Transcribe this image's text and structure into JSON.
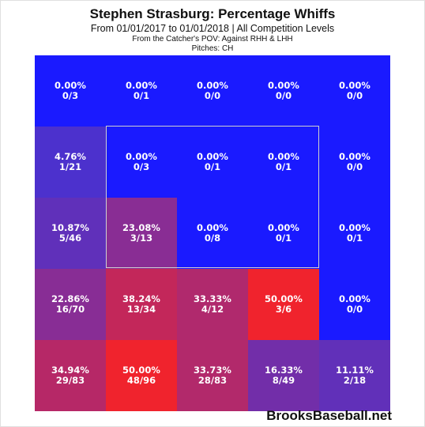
{
  "header": {
    "title": "Stephen Strasburg: Percentage Whiffs",
    "subtitle": "From 01/01/2017 to 01/01/2018 | All Competition Levels",
    "pov": "From the Catcher's POV:  Against RHH & LHH",
    "pitches": "Pitches:  CH"
  },
  "brand": "BrooksBaseball.net",
  "colors": {
    "low": "#1a1aff",
    "high": "#ff2020",
    "strike_zone_border": "#cfcfcf"
  },
  "chart_data": {
    "type": "heatmap",
    "title": "Stephen Strasburg: Percentage Whiffs",
    "rows": 5,
    "cols": 5,
    "cells": [
      [
        {
          "pct": "0.00%",
          "frac": "0/3",
          "value": 0.0
        },
        {
          "pct": "0.00%",
          "frac": "0/1",
          "value": 0.0
        },
        {
          "pct": "0.00%",
          "frac": "0/0",
          "value": 0.0
        },
        {
          "pct": "0.00%",
          "frac": "0/0",
          "value": 0.0
        },
        {
          "pct": "0.00%",
          "frac": "0/0",
          "value": 0.0
        }
      ],
      [
        {
          "pct": "4.76%",
          "frac": "1/21",
          "value": 4.76
        },
        {
          "pct": "0.00%",
          "frac": "0/3",
          "value": 0.0
        },
        {
          "pct": "0.00%",
          "frac": "0/1",
          "value": 0.0
        },
        {
          "pct": "0.00%",
          "frac": "0/1",
          "value": 0.0
        },
        {
          "pct": "0.00%",
          "frac": "0/0",
          "value": 0.0
        }
      ],
      [
        {
          "pct": "10.87%",
          "frac": "5/46",
          "value": 10.87
        },
        {
          "pct": "23.08%",
          "frac": "3/13",
          "value": 23.08
        },
        {
          "pct": "0.00%",
          "frac": "0/8",
          "value": 0.0
        },
        {
          "pct": "0.00%",
          "frac": "0/1",
          "value": 0.0
        },
        {
          "pct": "0.00%",
          "frac": "0/1",
          "value": 0.0
        }
      ],
      [
        {
          "pct": "22.86%",
          "frac": "16/70",
          "value": 22.86
        },
        {
          "pct": "38.24%",
          "frac": "13/34",
          "value": 38.24
        },
        {
          "pct": "33.33%",
          "frac": "4/12",
          "value": 33.33
        },
        {
          "pct": "50.00%",
          "frac": "3/6",
          "value": 50.0
        },
        {
          "pct": "0.00%",
          "frac": "0/0",
          "value": 0.0
        }
      ],
      [
        {
          "pct": "34.94%",
          "frac": "29/83",
          "value": 34.94
        },
        {
          "pct": "50.00%",
          "frac": "48/96",
          "value": 50.0
        },
        {
          "pct": "33.73%",
          "frac": "28/83",
          "value": 33.73
        },
        {
          "pct": "16.33%",
          "frac": "8/49",
          "value": 16.33
        },
        {
          "pct": "11.11%",
          "frac": "2/18",
          "value": 11.11
        }
      ]
    ]
  }
}
